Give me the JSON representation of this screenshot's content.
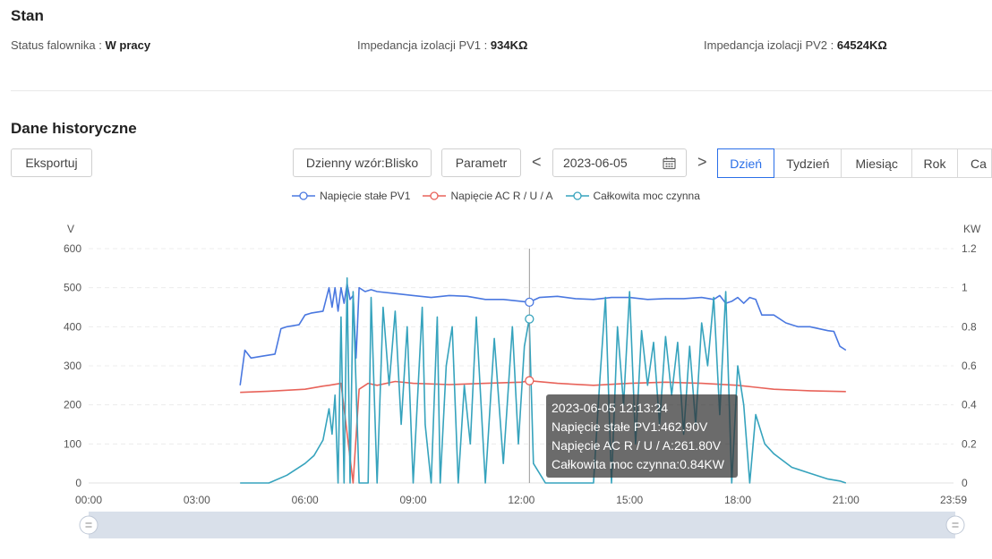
{
  "status": {
    "title": "Stan",
    "items": [
      {
        "label": "Status falownika",
        "value": "W pracy"
      },
      {
        "label": "Impedancja izolacji PV1",
        "value": "934KΩ"
      },
      {
        "label": "Impedancja izolacji PV2",
        "value": "64524KΩ"
      }
    ]
  },
  "history": {
    "title": "Dane historyczne",
    "export_label": "Eksportuj",
    "pattern_label": "Dzienny wzór:Blisko",
    "param_label": "Parametr",
    "prev": "<",
    "next": ">",
    "date": "2023-06-05",
    "periods": [
      "Dzień",
      "Tydzień",
      "Miesiąc",
      "Rok",
      "Ca"
    ],
    "active_period": "Dzień"
  },
  "colors": {
    "pv1": "#4a78e0",
    "ac": "#e8635a",
    "power": "#36a3bd"
  },
  "chart_data": {
    "type": "line",
    "legend_position": "top-center",
    "grid": true,
    "x_ticks": [
      "00:00",
      "03:00",
      "06:00",
      "09:00",
      "12:00",
      "15:00",
      "18:00",
      "21:00",
      "23:59"
    ],
    "y_left": {
      "unit": "V",
      "range": [
        0,
        600
      ],
      "ticks": [
        "600",
        "500",
        "400",
        "300",
        "200",
        "100",
        "0"
      ]
    },
    "y_right": {
      "unit": "KW",
      "range": [
        0,
        1.2
      ],
      "ticks": [
        "1.2",
        "1",
        "0.8",
        "0.6",
        "0.4",
        "0.2",
        "0"
      ]
    },
    "series": [
      {
        "name": "Napięcie stałe PV1",
        "axis": "left",
        "x": [
          "04:12",
          "04:20",
          "04:30",
          "04:50",
          "05:10",
          "05:20",
          "05:30",
          "05:50",
          "06:00",
          "06:10",
          "06:30",
          "06:40",
          "06:45",
          "06:50",
          "06:55",
          "07:00",
          "07:05",
          "07:10",
          "07:15",
          "07:20",
          "07:25",
          "07:30",
          "07:40",
          "07:50",
          "08:00",
          "08:30",
          "09:00",
          "09:30",
          "10:00",
          "10:30",
          "11:00",
          "11:30",
          "12:00",
          "12:13",
          "12:30",
          "13:00",
          "13:30",
          "14:00",
          "14:30",
          "15:00",
          "15:30",
          "16:00",
          "16:30",
          "17:00",
          "17:20",
          "17:30",
          "17:40",
          "17:50",
          "18:00",
          "18:10",
          "18:20",
          "18:30",
          "18:40",
          "19:00",
          "19:20",
          "19:40",
          "20:00",
          "20:30",
          "20:40",
          "20:50",
          "21:00"
        ],
        "values": [
          250,
          340,
          320,
          325,
          330,
          395,
          400,
          405,
          430,
          435,
          440,
          500,
          450,
          500,
          440,
          500,
          460,
          510,
          470,
          480,
          320,
          500,
          490,
          495,
          490,
          485,
          480,
          475,
          480,
          478,
          470,
          470,
          465,
          462.9,
          475,
          478,
          472,
          470,
          475,
          475,
          470,
          472,
          472,
          475,
          470,
          480,
          460,
          465,
          475,
          460,
          475,
          470,
          430,
          430,
          410,
          400,
          400,
          390,
          388,
          350,
          340
        ]
      },
      {
        "name": "Napięcie AC R / U / A",
        "axis": "left",
        "x": [
          "04:12",
          "05:00",
          "06:00",
          "06:30",
          "06:40",
          "07:00",
          "07:20",
          "07:30",
          "07:45",
          "08:00",
          "08:30",
          "09:00",
          "10:00",
          "11:00",
          "12:00",
          "12:13",
          "13:00",
          "14:00",
          "15:00",
          "16:00",
          "17:00",
          "18:00",
          "18:30",
          "19:00",
          "20:00",
          "21:00"
        ],
        "values": [
          232,
          235,
          240,
          248,
          250,
          255,
          0,
          240,
          255,
          250,
          260,
          255,
          252,
          255,
          258,
          261.8,
          255,
          250,
          255,
          258,
          255,
          250,
          245,
          240,
          236,
          234
        ]
      },
      {
        "name": "Całkowita moc czynna",
        "axis": "right",
        "x": [
          "04:12",
          "05:00",
          "05:30",
          "06:00",
          "06:15",
          "06:30",
          "06:40",
          "06:45",
          "06:50",
          "06:55",
          "07:00",
          "07:05",
          "07:10",
          "07:15",
          "07:20",
          "07:30",
          "07:35",
          "07:45",
          "07:50",
          "08:00",
          "08:10",
          "08:20",
          "08:30",
          "08:40",
          "08:50",
          "09:00",
          "09:15",
          "09:20",
          "09:30",
          "09:40",
          "09:45",
          "09:55",
          "10:05",
          "10:15",
          "10:25",
          "10:35",
          "10:45",
          "11:00",
          "11:15",
          "11:30",
          "11:45",
          "11:55",
          "12:05",
          "12:13",
          "12:20",
          "12:40",
          "13:00",
          "13:30",
          "14:00",
          "14:10",
          "14:20",
          "14:30",
          "14:40",
          "14:50",
          "15:00",
          "15:10",
          "15:20",
          "15:30",
          "15:40",
          "15:50",
          "16:00",
          "16:10",
          "16:20",
          "16:30",
          "16:40",
          "16:50",
          "17:00",
          "17:10",
          "17:20",
          "17:30",
          "17:40",
          "17:50",
          "18:00",
          "18:10",
          "18:20",
          "18:30",
          "18:45",
          "19:00",
          "19:30",
          "20:00",
          "20:30",
          "20:50",
          "21:00"
        ],
        "values": [
          0,
          0,
          0.04,
          0.1,
          0.14,
          0.22,
          0.38,
          0.25,
          0.45,
          0,
          0.85,
          0,
          1.05,
          0,
          0.98,
          0,
          0,
          0,
          0.95,
          0,
          0.9,
          0.5,
          0.88,
          0.3,
          0.8,
          0,
          0.9,
          0.3,
          0,
          0.85,
          0,
          0.6,
          0.8,
          0,
          0.5,
          0.2,
          0.85,
          0,
          0.74,
          0.1,
          0.8,
          0.2,
          0.7,
          0.84,
          0.1,
          0,
          0,
          0,
          0,
          0.5,
          0.95,
          0,
          0.8,
          0.4,
          0.98,
          0.2,
          0.78,
          0.5,
          0.72,
          0.3,
          0.75,
          0.45,
          0.72,
          0.25,
          0.7,
          0.3,
          0.82,
          0.6,
          0.95,
          0.35,
          0.98,
          0,
          0.6,
          0.4,
          0,
          0.35,
          0.2,
          0.15,
          0.08,
          0.05,
          0.02,
          0.01,
          0
        ]
      }
    ],
    "tooltip": {
      "time": "2023-06-05 12:13:24",
      "lines": [
        "Napięcie stałe PV1:462.90V",
        "Napięcie AC R / U / A:261.80V",
        "Całkowita moc czynna:0.84KW"
      ]
    }
  }
}
